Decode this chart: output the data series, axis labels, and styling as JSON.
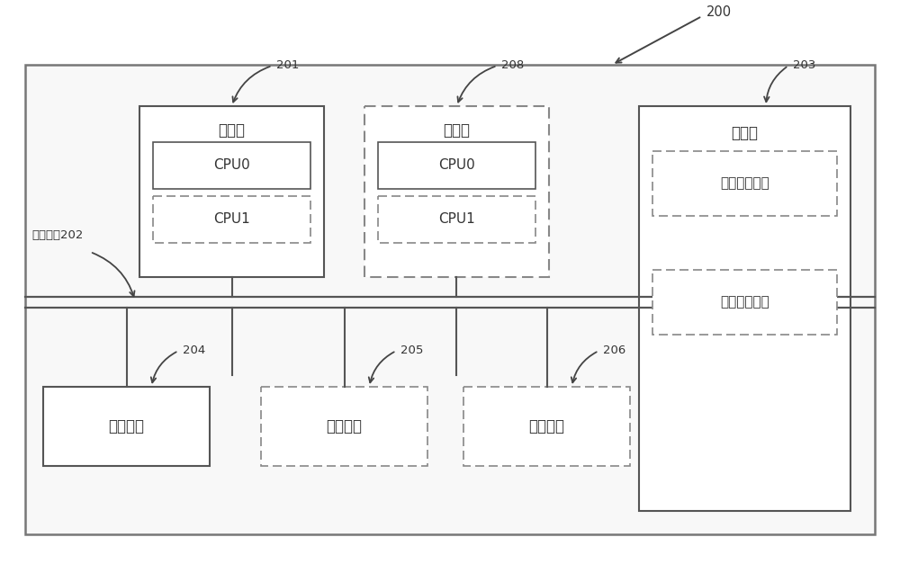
{
  "bg_color": "#ffffff",
  "outer_border_color": "#777777",
  "solid_line_color": "#555555",
  "dashed_line_color": "#888888",
  "text_color": "#333333",
  "label_200": "200",
  "label_201": "201",
  "label_202": "通信总线202",
  "label_203": "203",
  "label_204": "204",
  "label_205": "205",
  "label_206": "206",
  "label_208": "208",
  "text_processor1": "处理器",
  "text_processor2": "处理器",
  "text_cpu0_1": "CPU0",
  "text_cpu1_1": "CPU1",
  "text_cpu0_2": "CPU0",
  "text_cpu1_2": "CPU1",
  "text_memory": "存储器",
  "text_exec1": "第一执行模块",
  "text_exec2": "第二执行模块",
  "text_comm_iface": "通信接口",
  "text_output": "输出设备",
  "text_input": "输入设备",
  "figsize": [
    10.0,
    6.27
  ],
  "dpi": 100
}
